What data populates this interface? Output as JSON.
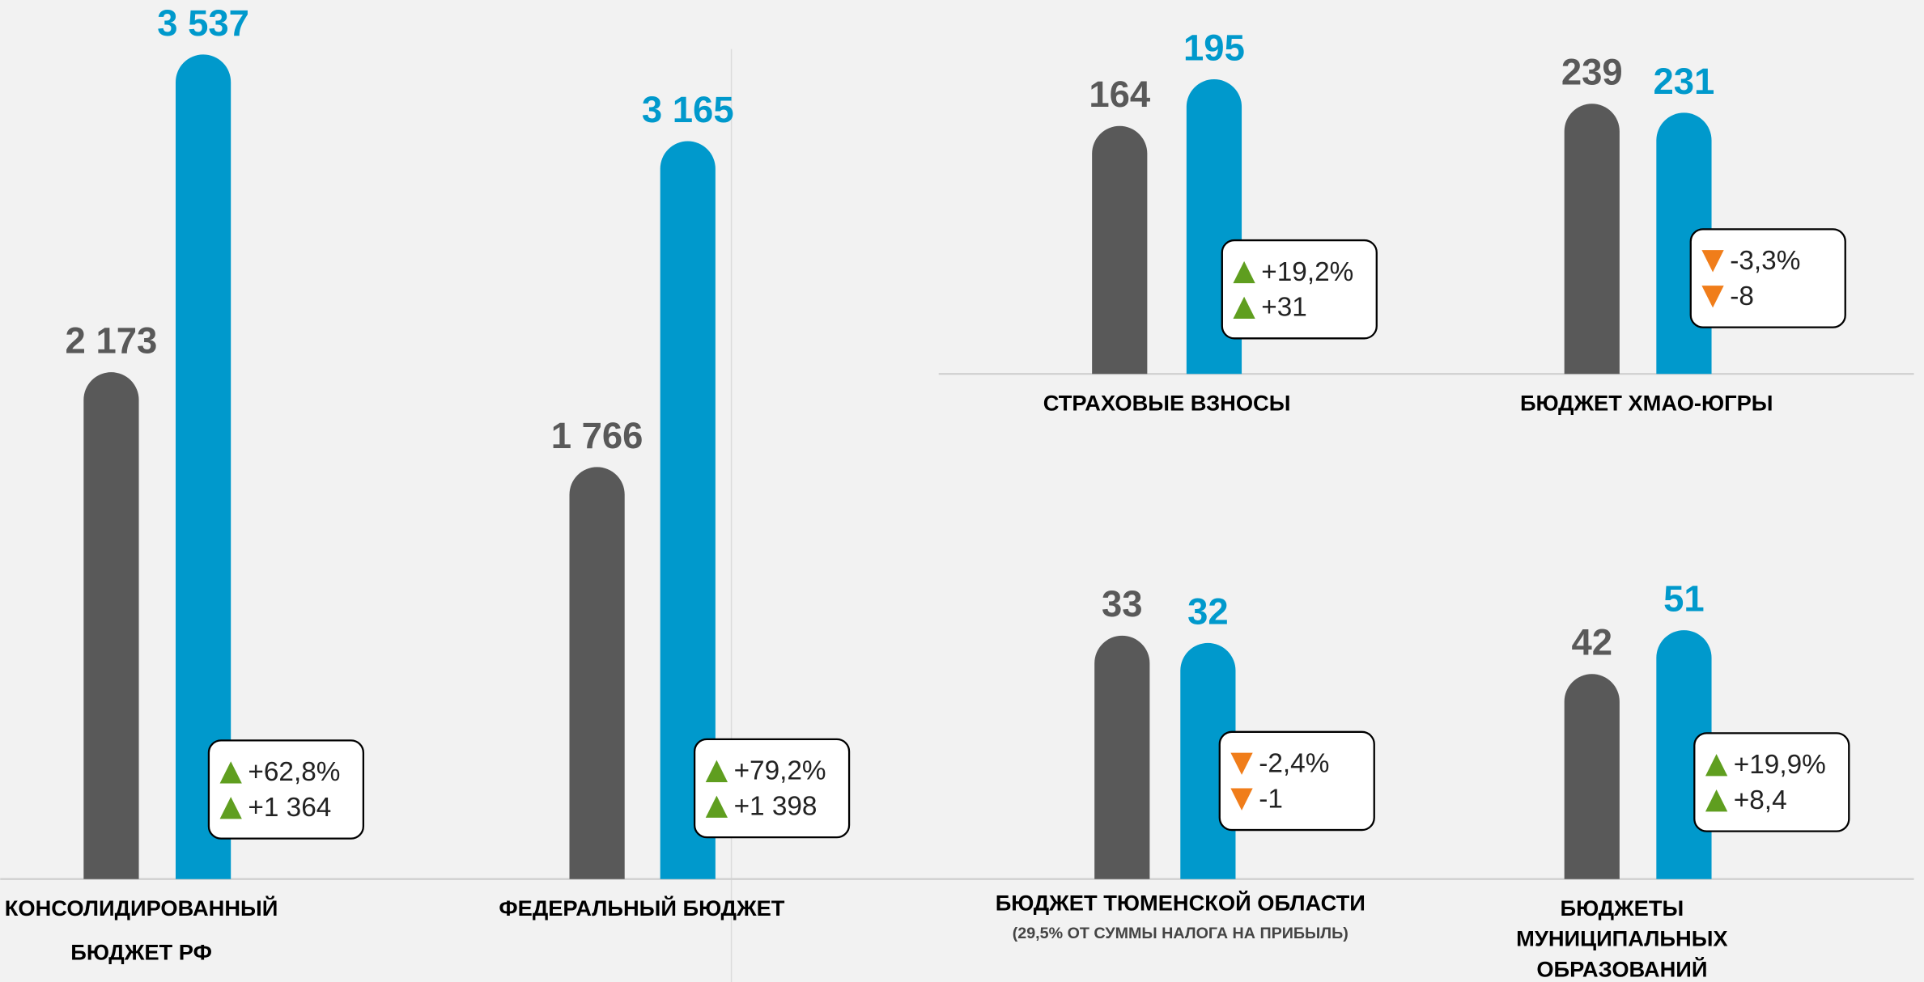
{
  "chart_data": [
    {
      "type": "bar",
      "title": [
        "КОНСОЛИДИРОВАННЫЙ",
        "БЮДЖЕТ РФ"
      ],
      "values": [
        2173,
        3537
      ],
      "value_labels": [
        "2 173",
        "3 537"
      ],
      "colors": [
        "#595959",
        "#0099cc"
      ],
      "trend": "up",
      "change_labels": [
        "+62,8%",
        "+1 364"
      ]
    },
    {
      "type": "bar",
      "title": [
        "ФЕДЕРАЛЬНЫЙ БЮДЖЕТ"
      ],
      "values": [
        1766,
        3165
      ],
      "value_labels": [
        "1 766",
        "3 165"
      ],
      "colors": [
        "#595959",
        "#0099cc"
      ],
      "trend": "up",
      "change_labels": [
        "+79,2%",
        "+1 398"
      ]
    },
    {
      "type": "bar",
      "title": [
        "СТРАХОВЫЕ ВЗНОСЫ"
      ],
      "values": [
        164,
        195
      ],
      "colors": [
        "#595959",
        "#0099cc"
      ],
      "trend": "up",
      "change_labels": [
        "+19,2%",
        "+31"
      ]
    },
    {
      "type": "bar",
      "title": [
        "БЮДЖЕТ ХМАО-ЮГРЫ"
      ],
      "values": [
        239,
        231
      ],
      "colors": [
        "#595959",
        "#0099cc"
      ],
      "trend": "down",
      "change_labels": [
        "-3,3%",
        "-8"
      ]
    },
    {
      "type": "bar",
      "title": [
        "БЮДЖЕТ ТЮМЕНСКОЙ ОБЛАСТИ"
      ],
      "subtitle": "(29,5% ОТ СУММЫ НАЛОГА НА ПРИБЫЛЬ)",
      "values": [
        33,
        32
      ],
      "colors": [
        "#595959",
        "#0099cc"
      ],
      "trend": "down",
      "change_labels": [
        "-2,4%",
        "-1"
      ]
    },
    {
      "type": "bar",
      "title": [
        "БЮДЖЕТЫ",
        "МУНИЦИПАЛЬНЫХ",
        "ОБРАЗОВАНИЙ"
      ],
      "values": [
        42,
        51
      ],
      "colors": [
        "#595959",
        "#0099cc"
      ],
      "trend": "up",
      "change_labels": [
        "+19,9%",
        "+8,4"
      ]
    }
  ]
}
